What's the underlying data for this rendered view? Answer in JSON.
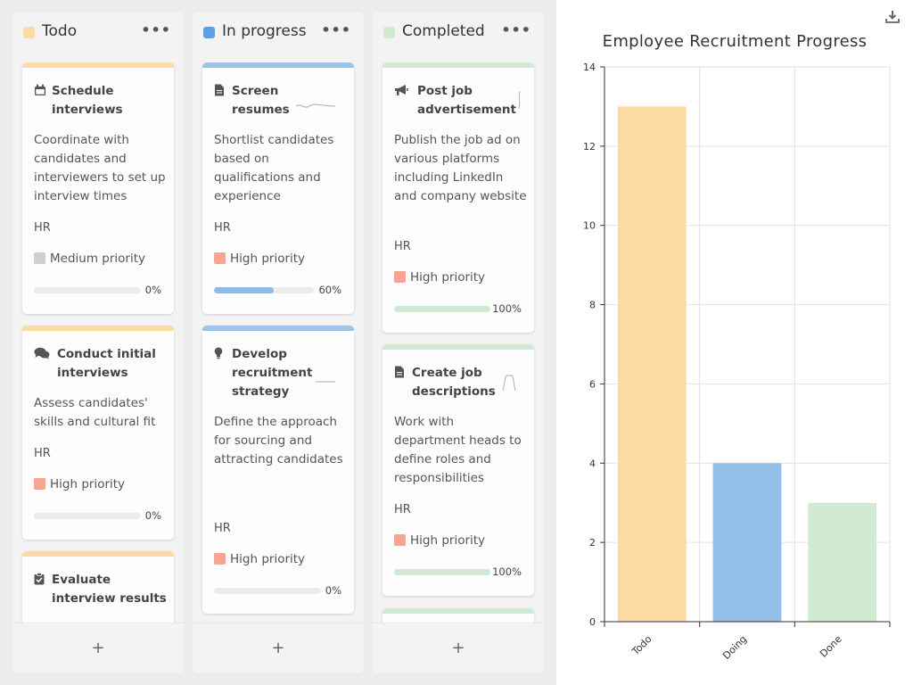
{
  "board": {
    "columns": [
      {
        "title": "Todo",
        "swatch": "#fdd9a4",
        "bar_color": "#fdd9a4",
        "fill_color": "#fdd9a4",
        "menu": "•••",
        "add": "+",
        "cards": [
          {
            "icon": "calendar-icon",
            "title": "Schedule interviews",
            "desc": "Coordinate with candidates and interviewers to set up interview times",
            "dept": "HR",
            "priority": "Medium priority",
            "priority_color": "#cfcfcf",
            "progress": 0,
            "progress_label": "0%"
          },
          {
            "icon": "comments-icon",
            "title": "Conduct initial interviews",
            "desc": "Assess candidates' skills and cultural fit",
            "dept": "HR",
            "priority": "High priority",
            "priority_color": "#f6a592",
            "progress": 0,
            "progress_label": "0%"
          },
          {
            "icon": "clipboard-check-icon",
            "title": "Evaluate interview results",
            "desc": "",
            "dept": "",
            "priority": "",
            "priority_color": "#f6a592",
            "progress": 0,
            "progress_label": ""
          }
        ]
      },
      {
        "title": "In progress",
        "swatch": "#5e9fe0",
        "bar_color": "#9cc3ea",
        "fill_color": "#8ebbe8",
        "menu": "•••",
        "add": "+",
        "cards": [
          {
            "icon": "file-icon",
            "title": "Screen resumes",
            "desc": "Shortlist candidates based on qualifications and experience",
            "dept": "HR",
            "priority": "High priority",
            "priority_color": "#f6a592",
            "progress": 60,
            "progress_label": "60%"
          },
          {
            "icon": "lightbulb-icon",
            "title": "Develop recruitment strategy",
            "desc": "Define the approach for sourcing and attracting candidates",
            "dept": "HR",
            "priority": "High priority",
            "priority_color": "#f6a592",
            "progress": 0,
            "progress_label": "0%"
          }
        ]
      },
      {
        "title": "Completed",
        "swatch": "#d0ebd2",
        "bar_color": "#d0ebd2",
        "fill_color": "#cfead1",
        "menu": "•••",
        "add": "+",
        "cards": [
          {
            "icon": "megaphone-icon",
            "title": "Post job advertisement",
            "desc": "Publish the job ad on various platforms including LinkedIn and company website",
            "dept": "HR",
            "priority": "High priority",
            "priority_color": "#f6a592",
            "progress": 100,
            "progress_label": "100%"
          },
          {
            "icon": "file-icon",
            "title": "Create job descriptions",
            "desc": "Work with department heads to define roles and responsibilities",
            "dept": "HR",
            "priority": "High priority",
            "priority_color": "#f6a592",
            "progress": 100,
            "progress_label": "100%"
          }
        ]
      }
    ]
  },
  "chart": {
    "download_icon": "download-icon"
  },
  "chart_data": {
    "type": "bar",
    "title": "Employee Recruitment Progress",
    "categories": [
      "Todo",
      "Doing",
      "Done"
    ],
    "values": [
      13,
      4,
      3
    ],
    "colors": [
      "#fdd9a4",
      "#93c0e8",
      "#d0ebd2"
    ],
    "ylim": [
      0,
      14
    ],
    "yticks": [
      0,
      2,
      4,
      6,
      8,
      10,
      12,
      14
    ],
    "xlabel": "",
    "ylabel": "",
    "grid": true,
    "legend": "none"
  }
}
